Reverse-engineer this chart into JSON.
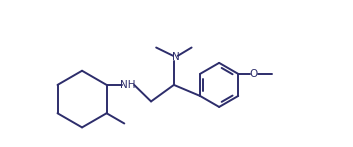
{
  "bg_color": "#ffffff",
  "line_color": "#2d2d6b",
  "line_width": 1.4,
  "font_size": 7.5,
  "fig_width": 3.53,
  "fig_height": 1.47,
  "dpi": 100,
  "xlim": [
    0.0,
    7.2
  ],
  "ylim": [
    -1.2,
    2.5
  ]
}
